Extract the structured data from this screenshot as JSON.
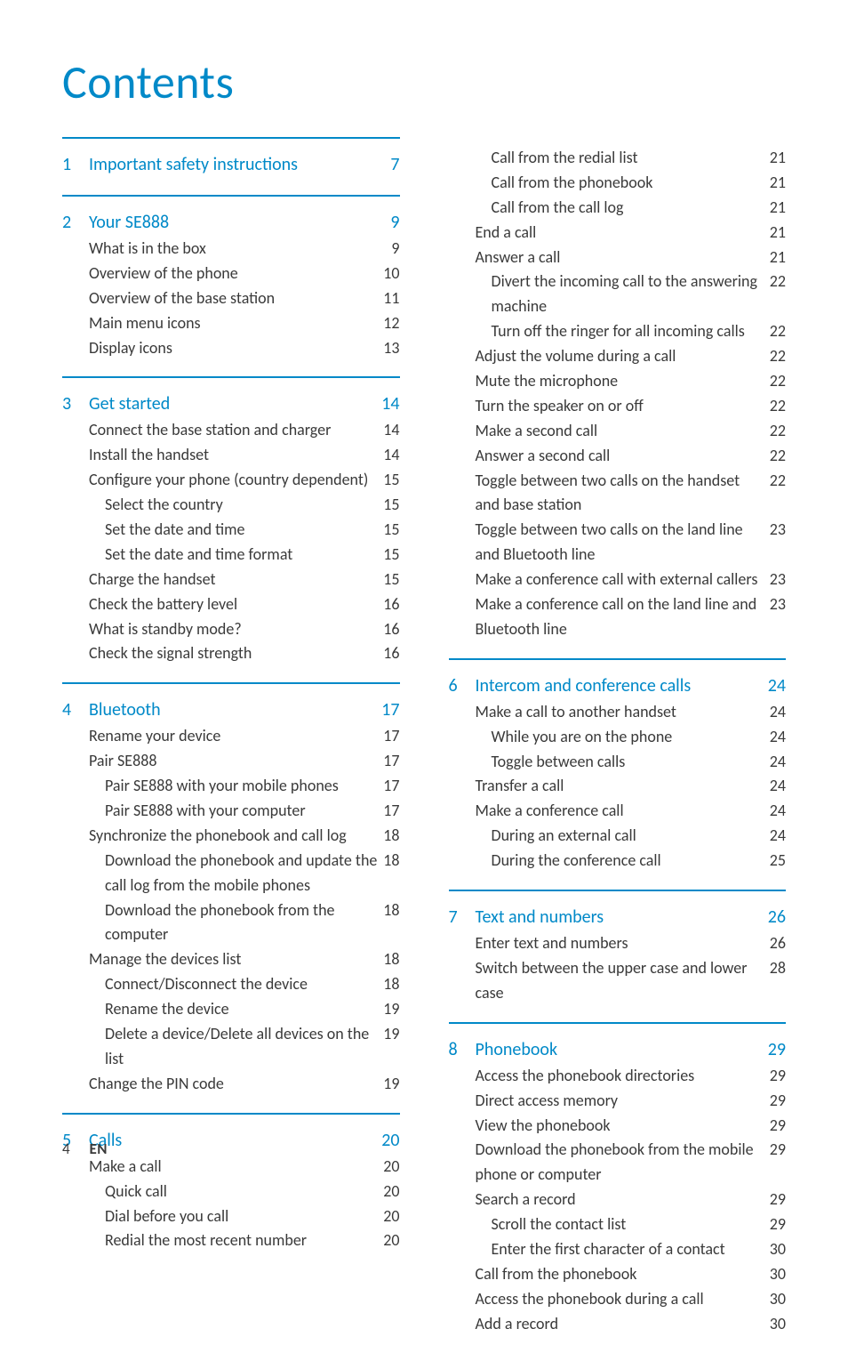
{
  "title": "Contents",
  "title_color": "#0089c8",
  "heading_color": "#0089c8",
  "rule_color_main": "#0089c8",
  "rule_color_sub": "#0089c8",
  "text_color": "#3a3a3a",
  "left_sections": [
    {
      "num": "1",
      "rows": [
        {
          "kind": "heading",
          "label": "Important safety instructions",
          "page": "7"
        }
      ]
    },
    {
      "num": "2",
      "rows": [
        {
          "kind": "heading",
          "label": "Your SE888",
          "page": "9"
        },
        {
          "kind": "sub1",
          "label": "What is in the box",
          "page": "9"
        },
        {
          "kind": "sub1",
          "label": "Overview of the phone",
          "page": "10"
        },
        {
          "kind": "sub1",
          "label": "Overview of the base station",
          "page": "11"
        },
        {
          "kind": "sub1",
          "label": "Main menu icons",
          "page": "12"
        },
        {
          "kind": "sub1",
          "label": "Display icons",
          "page": "13"
        }
      ]
    },
    {
      "num": "3",
      "rows": [
        {
          "kind": "heading",
          "label": "Get started",
          "page": "14"
        },
        {
          "kind": "sub1",
          "label": "Connect the base station and charger",
          "page": "14"
        },
        {
          "kind": "sub1",
          "label": "Install the handset",
          "page": "14"
        },
        {
          "kind": "sub1",
          "label": "Configure your phone (country dependent)",
          "page": "15"
        },
        {
          "kind": "sub2",
          "label": "Select the country",
          "page": "15"
        },
        {
          "kind": "sub2",
          "label": "Set the date and time",
          "page": "15"
        },
        {
          "kind": "sub2",
          "label": "Set the date and time format",
          "page": "15"
        },
        {
          "kind": "sub1",
          "label": "Charge the handset",
          "page": "15"
        },
        {
          "kind": "sub1",
          "label": "Check the battery level",
          "page": "16"
        },
        {
          "kind": "sub1",
          "label": "What is standby mode?",
          "page": "16"
        },
        {
          "kind": "sub1",
          "label": "Check the signal strength",
          "page": "16"
        }
      ]
    },
    {
      "num": "4",
      "rows": [
        {
          "kind": "heading",
          "label": "Bluetooth",
          "page": "17"
        },
        {
          "kind": "sub1",
          "label": "Rename your device",
          "page": "17"
        },
        {
          "kind": "sub1",
          "label": "Pair SE888",
          "page": "17"
        },
        {
          "kind": "sub2",
          "label": "Pair SE888 with your mobile phones",
          "page": "17"
        },
        {
          "kind": "sub2",
          "label": "Pair SE888 with your computer",
          "page": "17"
        },
        {
          "kind": "sub1",
          "label": "Synchronize the phonebook and call log",
          "page": "18"
        },
        {
          "kind": "sub2",
          "label": "Download the phonebook and update the call log from the mobile phones",
          "page": "18"
        },
        {
          "kind": "sub2",
          "label": "Download the phonebook from the computer",
          "page": "18"
        },
        {
          "kind": "sub1",
          "label": "Manage the devices list",
          "page": "18"
        },
        {
          "kind": "sub2",
          "label": "Connect/Disconnect the device",
          "page": "18"
        },
        {
          "kind": "sub2",
          "label": "Rename the device",
          "page": "19"
        },
        {
          "kind": "sub2",
          "label": "Delete a device/Delete all devices on the list",
          "page": "19"
        },
        {
          "kind": "sub1",
          "label": "Change the PIN code",
          "page": "19"
        }
      ]
    },
    {
      "num": "5",
      "rows": [
        {
          "kind": "heading",
          "label": "Calls",
          "page": "20"
        },
        {
          "kind": "sub1",
          "label": "Make a call",
          "page": "20"
        },
        {
          "kind": "sub2",
          "label": "Quick call",
          "page": "20"
        },
        {
          "kind": "sub2",
          "label": "Dial before you call",
          "page": "20"
        },
        {
          "kind": "sub2",
          "label": "Redial the most recent number",
          "page": "20"
        }
      ]
    }
  ],
  "right_sections": [
    {
      "num": "",
      "no_border": true,
      "rows": [
        {
          "kind": "sub2",
          "label": "Call from the redial list",
          "page": "21"
        },
        {
          "kind": "sub2",
          "label": "Call from the phonebook",
          "page": "21"
        },
        {
          "kind": "sub2",
          "label": "Call from the call log",
          "page": "21"
        },
        {
          "kind": "sub1",
          "label": "End a call",
          "page": "21"
        },
        {
          "kind": "sub1",
          "label": "Answer a call",
          "page": "21"
        },
        {
          "kind": "sub2",
          "label": "Divert the incoming call to the answering machine",
          "page": "22"
        },
        {
          "kind": "sub2",
          "label": "Turn off the ringer for all incoming calls",
          "page": "22"
        },
        {
          "kind": "sub1",
          "label": "Adjust the volume during a call",
          "page": "22"
        },
        {
          "kind": "sub1",
          "label": "Mute the microphone",
          "page": "22"
        },
        {
          "kind": "sub1",
          "label": "Turn the speaker on or off",
          "page": "22"
        },
        {
          "kind": "sub1",
          "label": "Make a second call",
          "page": "22"
        },
        {
          "kind": "sub1",
          "label": "Answer a second call",
          "page": "22"
        },
        {
          "kind": "sub1",
          "label": "Toggle between two calls on the handset and base station",
          "page": "22"
        },
        {
          "kind": "sub1",
          "label": "Toggle between two calls on the land line and Bluetooth line",
          "page": "23"
        },
        {
          "kind": "sub1",
          "label": "Make a conference call with external callers",
          "page": "23"
        },
        {
          "kind": "sub1",
          "label": "Make a conference call on the land line and Bluetooth line",
          "page": "23"
        }
      ]
    },
    {
      "num": "6",
      "rows": [
        {
          "kind": "heading",
          "label": "Intercom and conference calls",
          "page": "24"
        },
        {
          "kind": "sub1",
          "label": "Make a call to another handset",
          "page": "24"
        },
        {
          "kind": "sub2",
          "label": "While you are on the phone",
          "page": "24"
        },
        {
          "kind": "sub2",
          "label": "Toggle between calls",
          "page": "24"
        },
        {
          "kind": "sub1",
          "label": "Transfer a call",
          "page": "24"
        },
        {
          "kind": "sub1",
          "label": "Make a conference call",
          "page": "24"
        },
        {
          "kind": "sub2",
          "label": "During an external call",
          "page": "24"
        },
        {
          "kind": "sub2",
          "label": "During the conference call",
          "page": "25"
        }
      ]
    },
    {
      "num": "7",
      "rows": [
        {
          "kind": "heading",
          "label": "Text and numbers",
          "page": "26"
        },
        {
          "kind": "sub1",
          "label": "Enter text and numbers",
          "page": "26"
        },
        {
          "kind": "sub1",
          "label": "Switch between the upper case and lower case",
          "page": "28"
        }
      ]
    },
    {
      "num": "8",
      "rows": [
        {
          "kind": "heading",
          "label": "Phonebook",
          "page": "29"
        },
        {
          "kind": "sub1",
          "label": "Access the phonebook directories",
          "page": "29"
        },
        {
          "kind": "sub1",
          "label": "Direct access memory",
          "page": "29"
        },
        {
          "kind": "sub1",
          "label": "View the phonebook",
          "page": "29"
        },
        {
          "kind": "sub1",
          "label": "Download the phonebook from the mobile phone or computer",
          "page": "29"
        },
        {
          "kind": "sub1",
          "label": "Search a record",
          "page": "29"
        },
        {
          "kind": "sub2",
          "label": "Scroll the contact list",
          "page": "29"
        },
        {
          "kind": "sub2",
          "label": "Enter the first character of a contact",
          "page": "30"
        },
        {
          "kind": "sub1",
          "label": "Call from the phonebook",
          "page": "30"
        },
        {
          "kind": "sub1",
          "label": "Access the phonebook during a call",
          "page": "30"
        },
        {
          "kind": "sub1",
          "label": "Add a record",
          "page": "30"
        }
      ]
    }
  ],
  "footer": {
    "page_number": "4",
    "lang": "EN"
  }
}
